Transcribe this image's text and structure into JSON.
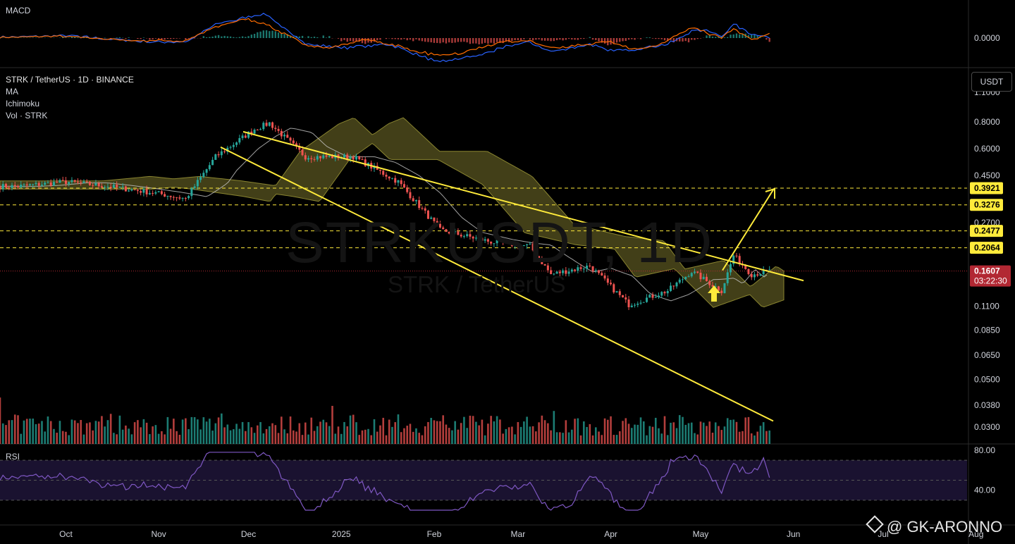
{
  "colors": {
    "background": "#000000",
    "bull": "#26a69a",
    "bear": "#ef5350",
    "trendline": "#ffeb3b",
    "cloud": "#4d4a1c",
    "ma": "#c8c8c8",
    "rsi": "#7e57c2",
    "macd": "#2962ff",
    "signal": "#ff6d00",
    "price_label": "#b22833"
  },
  "icons": {
    "arrow": "yellow-up-arrow-icon",
    "brand": "diamond-logo-icon",
    "settings": "currency-button"
  },
  "header": {
    "symbol_line": "STRK / TetherUS · 1D · BINANCE",
    "indicators": [
      "MA",
      "Ichimoku",
      "Vol · STRK"
    ],
    "macd_label": "MACD",
    "rsi_label": "RSI",
    "currency": "USDT"
  },
  "watermark": {
    "ticker": "STRKUSDT, 1D",
    "pair": "STRK / TetherUS"
  },
  "brand": {
    "handle": "@ GK-ARONNO"
  },
  "current": {
    "price": "0.1607",
    "countdown": "03:22:30"
  },
  "macd_axis": {
    "tick": "0.0000"
  },
  "rsi_axis": {
    "ticks": [
      "80.00",
      "40.00"
    ]
  },
  "chart_data": {
    "type": "candlestick",
    "title": "STRK / TetherUS · 1D · BINANCE",
    "scale": "log",
    "ylim": [
      0.025,
      1.15
    ],
    "x_ticks": [
      "Oct",
      "Nov",
      "Dec",
      "2025",
      "Feb",
      "Mar",
      "Apr",
      "May",
      "Jun",
      "Jul",
      "Aug"
    ],
    "y_ticks": [
      "1.1000",
      "0.8000",
      "0.6000",
      "0.4500",
      "0.2700",
      "0.1100",
      "0.0850",
      "0.0650",
      "0.0500",
      "0.0380",
      "0.0300"
    ],
    "horizontal_levels": [
      "0.3921",
      "0.3276",
      "0.2477",
      "0.2064"
    ],
    "current_price": 0.1607,
    "price_path": [
      {
        "date": "2024-09-15",
        "close": 0.4
      },
      {
        "date": "2024-10-01",
        "close": 0.42
      },
      {
        "date": "2024-10-15",
        "close": 0.4
      },
      {
        "date": "2024-11-01",
        "close": 0.37
      },
      {
        "date": "2024-11-10",
        "close": 0.35
      },
      {
        "date": "2024-11-20",
        "close": 0.55
      },
      {
        "date": "2024-12-03",
        "close": 0.74
      },
      {
        "date": "2024-12-08",
        "close": 0.79
      },
      {
        "date": "2024-12-20",
        "close": 0.55
      },
      {
        "date": "2025-01-05",
        "close": 0.55
      },
      {
        "date": "2025-01-20",
        "close": 0.42
      },
      {
        "date": "2025-02-03",
        "close": 0.25
      },
      {
        "date": "2025-02-20",
        "close": 0.22
      },
      {
        "date": "2025-03-05",
        "close": 0.21
      },
      {
        "date": "2025-03-12",
        "close": 0.155
      },
      {
        "date": "2025-03-25",
        "close": 0.17
      },
      {
        "date": "2025-04-07",
        "close": 0.112
      },
      {
        "date": "2025-04-20",
        "close": 0.13
      },
      {
        "date": "2025-04-28",
        "close": 0.16
      },
      {
        "date": "2025-05-08",
        "close": 0.13
      },
      {
        "date": "2025-05-12",
        "close": 0.19
      },
      {
        "date": "2025-05-18",
        "close": 0.155
      },
      {
        "date": "2025-05-24",
        "close": 0.1607
      }
    ],
    "indicators": [
      "MA",
      "Ichimoku",
      "Vol · STRK",
      "MACD",
      "RSI"
    ]
  }
}
